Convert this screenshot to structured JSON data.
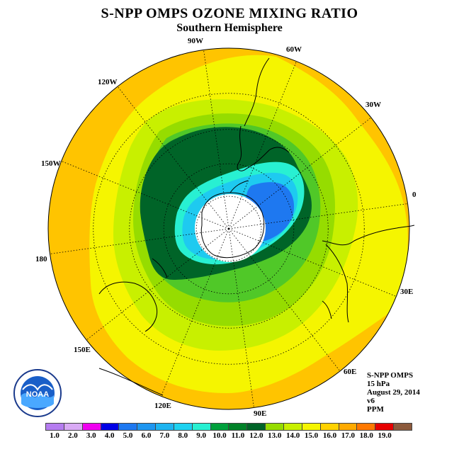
{
  "title": "S-NPP OMPS OZONE MIXING RATIO",
  "subtitle": "Southern Hemisphere",
  "longitude_labels": [
    "90W",
    "60W",
    "30W",
    "0",
    "30E",
    "60E",
    "90E",
    "120E",
    "150E",
    "180",
    "150W",
    "120W"
  ],
  "info": {
    "instrument": "S-NPP OMPS",
    "level": "15 hPa",
    "date": "August 29, 2014",
    "version": "v6",
    "units": "PPM"
  },
  "logo": {
    "text": "NOAA",
    "icon": "noaa-logo"
  },
  "colorbar": {
    "ticks": [
      "1.0",
      "2.0",
      "3.0",
      "4.0",
      "5.0",
      "6.0",
      "7.0",
      "8.0",
      "9.0",
      "10.0",
      "11.0",
      "12.0",
      "13.0",
      "14.0",
      "15.0",
      "16.0",
      "17.0",
      "18.0",
      "19.0"
    ],
    "colors": [
      "#b57cf0",
      "#d9aaf5",
      "#f000f0",
      "#0000e6",
      "#1e78f0",
      "#1e96f0",
      "#1eb4f0",
      "#1ed2f0",
      "#28f0d2",
      "#00a03c",
      "#008228",
      "#006428",
      "#96dc00",
      "#c8f000",
      "#f5f500",
      "#ffd200",
      "#ffaa00",
      "#ff7800",
      "#e60000",
      "#8c5a3c"
    ]
  },
  "map": {
    "projection": "south-polar-stereographic",
    "contour_colors": {
      "outer": "#ffc400",
      "yellow": "#f5f500",
      "lime": "#c8f000",
      "green": "#96dc00",
      "green2": "#50c828",
      "dark_green": "#006428",
      "cyan": "#28f0d2",
      "light_blue": "#1ecaf0",
      "blue": "#1e78f0",
      "hole": "#ffffff"
    }
  }
}
